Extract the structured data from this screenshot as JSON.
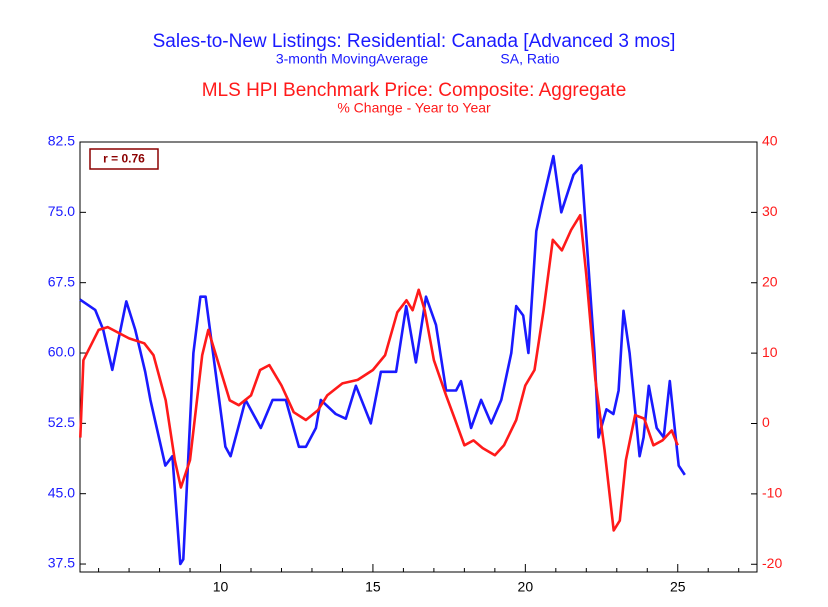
{
  "chart_data": {
    "type": "line",
    "title": "Sales-to-New Listings: Residential: Canada [Advanced 3 mos]",
    "subtitle": [
      "3-month MovingAverage",
      "SA, Ratio"
    ],
    "title2": "MLS HPI Benchmark Price: Composite: Aggregate",
    "subtitle2": "% Change - Year to Year",
    "annotation": "r = 0.76",
    "xlim": [
      5.39,
      27.6
    ],
    "xticks": [
      10,
      15,
      20,
      25
    ],
    "xminorticks": [
      6,
      7,
      8,
      9,
      11,
      12,
      13,
      14,
      16,
      17,
      18,
      19,
      21,
      22,
      23,
      24,
      26,
      27
    ],
    "ylim": [
      36.65,
      82.5
    ],
    "yticks": [
      {
        "value": 37.5,
        "label": "37.5"
      },
      {
        "value": 45,
        "label": "45.0"
      },
      {
        "value": 52.5,
        "label": "52.5"
      },
      {
        "value": 60,
        "label": "60.0"
      },
      {
        "value": 67.5,
        "label": "67.5"
      },
      {
        "value": 75,
        "label": "75.0"
      },
      {
        "value": 82.5,
        "label": "82.5"
      }
    ],
    "y2lim": [
      -21.1,
      40
    ],
    "y2ticks": [
      -20,
      -10,
      0,
      10,
      20,
      30,
      40
    ],
    "series": [
      {
        "name": "Sales-to-New Listings: Residential: Canada [Advanced 3 mos]",
        "color": "#1a1aff",
        "axis": "y",
        "x": [
          5.39,
          5.89,
          6.15,
          6.45,
          6.91,
          7.2,
          7.53,
          7.7,
          8.19,
          8.42,
          8.68,
          8.78,
          9.11,
          9.34,
          9.51,
          10.16,
          10.33,
          10.66,
          10.82,
          11.32,
          11.71,
          12.14,
          12.57,
          12.8,
          13.13,
          13.29,
          13.78,
          14.11,
          14.44,
          14.93,
          15.26,
          15.76,
          16.09,
          16.41,
          16.74,
          17.07,
          17.4,
          17.73,
          17.89,
          18.22,
          18.55,
          18.88,
          19.21,
          19.54,
          19.7,
          19.93,
          20.1,
          20.36,
          20.56,
          20.92,
          21.18,
          21.58,
          21.84,
          22.27,
          22.4,
          22.66,
          22.89,
          23.06,
          23.22,
          23.42,
          23.75,
          23.88,
          24.05,
          24.31,
          24.54,
          24.74,
          24.9,
          25.03,
          25.23
        ],
        "values": [
          65.7,
          64.6,
          62.5,
          58.2,
          65.5,
          62.5,
          58,
          55,
          48,
          49,
          37.5,
          38,
          60,
          66,
          66,
          50,
          49,
          53,
          55,
          52,
          55,
          55,
          50,
          50,
          52,
          55,
          53.5,
          53,
          56.5,
          52.5,
          58,
          58,
          65,
          59,
          66,
          63,
          56,
          56,
          57,
          52,
          55,
          52.5,
          55,
          60,
          65,
          64,
          60,
          73,
          76,
          81,
          75,
          79,
          80,
          60,
          51,
          54,
          53.5,
          56,
          64.5,
          60,
          49,
          51,
          56.5,
          52,
          51,
          57,
          52,
          48,
          47
        ]
      },
      {
        "name": "MLS HPI Benchmark Price: Composite: Aggregate",
        "color": "#ff1a1a",
        "axis": "y2",
        "x": [
          5.4,
          5.5,
          6.0,
          6.3,
          7.0,
          7.5,
          7.8,
          8.2,
          8.5,
          8.7,
          9.0,
          9.4,
          9.6,
          9.9,
          10.3,
          10.6,
          11.0,
          11.3,
          11.6,
          12.0,
          12.4,
          12.8,
          13.2,
          13.5,
          14.0,
          14.5,
          15.0,
          15.4,
          15.8,
          16.1,
          16.3,
          16.5,
          16.7,
          17.0,
          17.4,
          17.7,
          18.0,
          18.3,
          18.6,
          19.0,
          19.3,
          19.7,
          20.0,
          20.3,
          20.6,
          20.9,
          21.2,
          21.5,
          21.8,
          22.0,
          22.3,
          22.6,
          22.9,
          23.1,
          23.3,
          23.6,
          23.9,
          24.2,
          24.5,
          24.8,
          25.0
        ],
        "values": [
          -2,
          9,
          13.3,
          13.7,
          12.1,
          11.4,
          9.7,
          3.3,
          -5.2,
          -9.1,
          -5.2,
          9.7,
          13.3,
          9,
          3.3,
          2.6,
          4,
          7.6,
          8.3,
          5.4,
          1.6,
          0.5,
          1.9,
          4,
          5.7,
          6.2,
          7.6,
          9.7,
          15.8,
          17.5,
          16.1,
          19,
          16.1,
          9,
          4,
          0.5,
          -3.1,
          -2.4,
          -3.5,
          -4.5,
          -3.1,
          0.5,
          5.4,
          7.6,
          16.1,
          26.1,
          24.6,
          27.5,
          29.6,
          21.1,
          6.2,
          -3.8,
          -15.2,
          -13.8,
          -5.2,
          1.2,
          0.7,
          -3.1,
          -2.4,
          -1,
          -3.1
        ]
      }
    ]
  }
}
